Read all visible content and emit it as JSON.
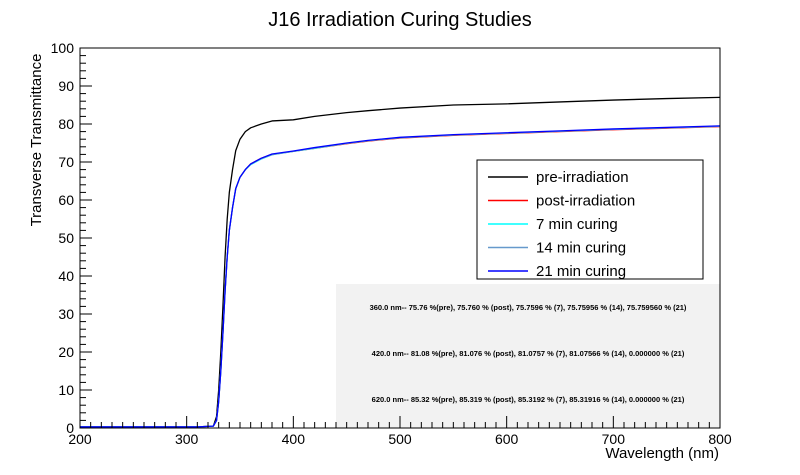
{
  "chart_data": {
    "type": "line",
    "title": "J16 Irradiation Curing Studies",
    "xlabel": "Wavelength (nm)",
    "ylabel": "Transverse Transmittance",
    "xlim": [
      200,
      800
    ],
    "ylim": [
      0,
      100
    ],
    "x_ticks": [
      "200",
      "300",
      "400",
      "500",
      "600",
      "700",
      "800"
    ],
    "y_ticks": [
      "0",
      "10",
      "20",
      "30",
      "40",
      "50",
      "60",
      "70",
      "80",
      "90",
      "100"
    ],
    "grid": false,
    "legend_position": "right",
    "series": [
      {
        "name": "pre-irradiation",
        "color": "#000000",
        "x": [
          200,
          310,
          325,
          328,
          330,
          332,
          334,
          336,
          338,
          340,
          343,
          346,
          350,
          355,
          360,
          370,
          380,
          400,
          420,
          450,
          470,
          500,
          550,
          600,
          650,
          700,
          750,
          800
        ],
        "y": [
          0.3,
          0.3,
          0.5,
          3,
          10,
          20,
          32,
          45,
          55,
          62,
          68,
          73,
          76,
          78,
          79,
          80,
          80.8,
          81.1,
          82,
          83,
          83.5,
          84.2,
          85,
          85.3,
          85.8,
          86.3,
          86.7,
          87.0
        ]
      },
      {
        "name": "post-irradiation",
        "color": "#ff0000",
        "x": [
          200,
          310,
          325,
          328,
          330,
          332,
          334,
          336,
          338,
          340,
          343,
          346,
          350,
          355,
          360,
          370,
          380,
          400,
          420,
          450,
          470,
          500,
          550,
          600,
          650,
          700,
          750,
          800
        ],
        "y": [
          0.3,
          0.3,
          0.5,
          2,
          7,
          15,
          25,
          36,
          45,
          52,
          58,
          63,
          66,
          68,
          69.5,
          71,
          72,
          72.8,
          73.6,
          74.8,
          75.5,
          76.3,
          77,
          77.5,
          78,
          78.5,
          78.9,
          79.3
        ]
      },
      {
        "name": "7 min curing",
        "color": "#00ffff",
        "x": [
          200,
          310,
          325,
          328,
          330,
          332,
          334,
          336,
          338,
          340,
          343,
          346,
          350,
          355,
          360,
          370,
          380,
          400,
          420,
          450,
          470,
          500,
          550,
          600,
          650,
          700,
          750,
          800
        ],
        "y": [
          0.3,
          0.3,
          0.5,
          2,
          7,
          15,
          25,
          36,
          45,
          52,
          58,
          63,
          66,
          68,
          69.3,
          70.8,
          71.9,
          72.8,
          73.6,
          74.9,
          75.6,
          76.4,
          77.1,
          77.6,
          78.1,
          78.6,
          79.0,
          79.4
        ]
      },
      {
        "name": "14 min curing",
        "color": "#6699cc",
        "x": [
          200,
          310,
          325,
          328,
          330,
          332,
          334,
          336,
          338,
          340,
          343,
          346,
          350,
          355,
          360,
          370,
          380,
          400,
          420,
          450,
          470,
          500,
          550,
          600,
          650,
          700,
          750,
          800
        ],
        "y": [
          0.3,
          0.3,
          0.5,
          2,
          7,
          15,
          25,
          36,
          45,
          52,
          58,
          63,
          66,
          68,
          69.4,
          70.9,
          71.9,
          72.8,
          73.7,
          74.9,
          75.6,
          76.4,
          77.1,
          77.6,
          78.1,
          78.6,
          79.0,
          79.4
        ]
      },
      {
        "name": "21 min curing",
        "color": "#0000ff",
        "x": [
          200,
          310,
          325,
          328,
          330,
          332,
          334,
          336,
          338,
          340,
          343,
          346,
          350,
          355,
          360,
          370,
          380,
          400,
          420,
          450,
          470,
          500,
          550,
          600,
          650,
          700,
          750,
          800
        ],
        "y": [
          0.3,
          0.3,
          0.5,
          2,
          7,
          15,
          25,
          36,
          45,
          52,
          58,
          63,
          66,
          68,
          69.5,
          71,
          72.1,
          72.9,
          73.8,
          75,
          75.7,
          76.5,
          77.2,
          77.7,
          78.2,
          78.7,
          79.1,
          79.5
        ]
      }
    ],
    "annotations": [
      "360.0 nm-- 75.76 %(pre), 75.760 % (post), 75.7596 % (7), 75.75956 % (14), 75.759560 % (21)",
      "420.0 nm-- 81.08 %(pre), 81.076 % (post), 81.0757 % (7), 81.07566 % (14), 0.000000 % (21)",
      "620.0 nm-- 85.32 %(pre), 85.319 % (post), 85.3192 % (7), 85.31916 % (14), 0.000000 % (21)"
    ]
  }
}
